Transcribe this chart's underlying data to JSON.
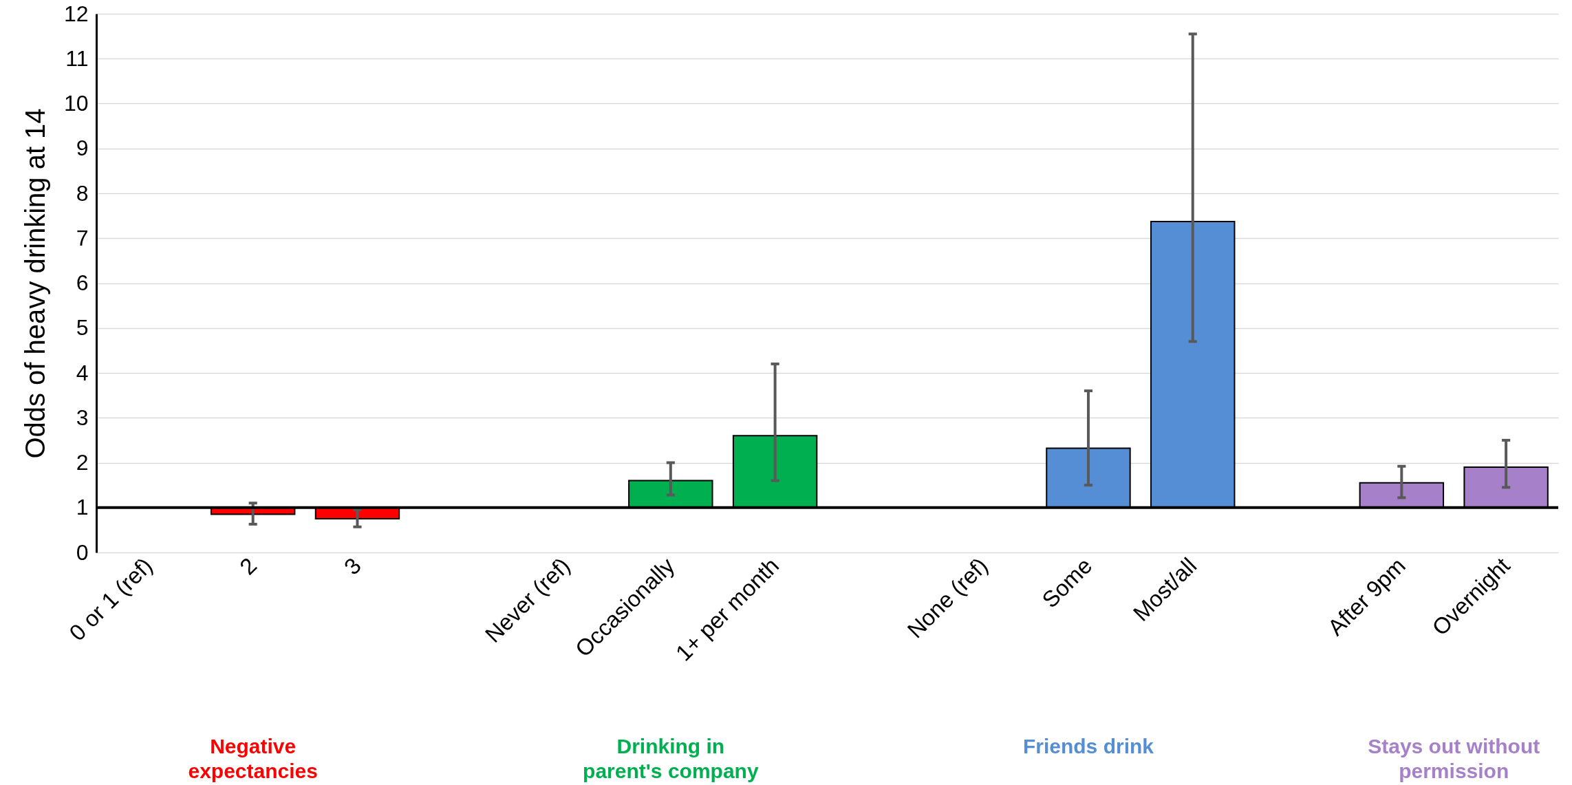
{
  "chart_data": {
    "type": "bar",
    "ylabel": "Odds of heavy drinking at 14",
    "categories": [
      "0 or 1 (ref)",
      "2",
      "3",
      null,
      "Never (ref)",
      "Occasionally",
      "1+ per month",
      null,
      "None (ref)",
      "Some",
      "Most/all",
      null,
      "After 9pm",
      "Overnight"
    ],
    "base": [
      1,
      1,
      1,
      null,
      1,
      1,
      1,
      null,
      1,
      1,
      1,
      null,
      1,
      1
    ],
    "values": [
      0,
      -0.15,
      -0.25,
      null,
      0,
      0.6,
      1.6,
      null,
      0,
      1.32,
      6.37,
      null,
      0.55,
      0.9
    ],
    "errors": [
      null,
      [
        0.63,
        1.1
      ],
      [
        0.57,
        0.95
      ],
      null,
      null,
      [
        1.28,
        2.0
      ],
      [
        1.6,
        4.2
      ],
      null,
      null,
      [
        1.5,
        3.6
      ],
      [
        4.7,
        11.55
      ],
      null,
      [
        1.22,
        1.92
      ],
      [
        1.45,
        2.5
      ]
    ],
    "colors": [
      "#ff0000",
      "#ff0000",
      "#ff0000",
      null,
      "#00b050",
      "#00b050",
      "#00b050",
      null,
      "#558ed5",
      "#558ed5",
      "#558ed5",
      null,
      "#a680c8",
      "#a680c8"
    ],
    "ylim": [
      0,
      12
    ],
    "yticks": [
      0,
      1,
      2,
      3,
      4,
      5,
      6,
      7,
      8,
      9,
      10,
      11,
      12
    ],
    "grid": "y",
    "ref_lines": [
      {
        "axis": "y",
        "value": 1,
        "color": "#000000"
      }
    ],
    "annotations": [
      "Negative expectancies",
      "Drinking in parent's company",
      "Friends drink",
      "Stays out without permission"
    ]
  }
}
